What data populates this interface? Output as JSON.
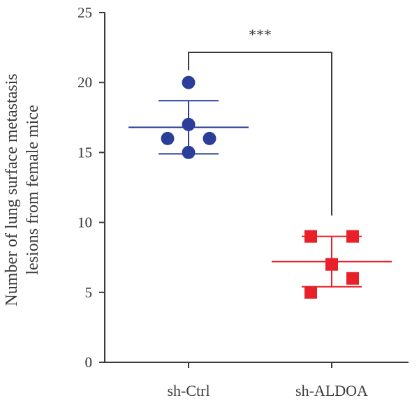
{
  "chart_data": {
    "type": "scatter",
    "ylabel_lines": [
      "Number of lung surface metastasis",
      "lesions from female mice"
    ],
    "xlabel": "",
    "title": "",
    "ylim": [
      0,
      25
    ],
    "yticks": [
      0,
      5,
      10,
      15,
      20,
      25
    ],
    "categories": [
      "sh-Ctrl",
      "sh-ALDOA"
    ],
    "series": [
      {
        "category": "sh-Ctrl",
        "color": "#2b3f9a",
        "marker": "circle",
        "points": [
          {
            "x_offset": 0,
            "y": 20
          },
          {
            "x_offset": 0,
            "y": 17
          },
          {
            "x_offset": -1,
            "y": 16
          },
          {
            "x_offset": 1,
            "y": 16
          },
          {
            "x_offset": 0,
            "y": 15
          }
        ],
        "mean": 16.8,
        "sd": 1.9
      },
      {
        "category": "sh-ALDOA",
        "color": "#e8202a",
        "marker": "square",
        "points": [
          {
            "x_offset": -1,
            "y": 9
          },
          {
            "x_offset": 1,
            "y": 9
          },
          {
            "x_offset": 0,
            "y": 7
          },
          {
            "x_offset": 1,
            "y": 6
          },
          {
            "x_offset": -1,
            "y": 5
          }
        ],
        "mean": 7.2,
        "sd": 1.8
      }
    ],
    "significance": {
      "label": "***",
      "between": [
        "sh-Ctrl",
        "sh-ALDOA"
      ]
    }
  }
}
